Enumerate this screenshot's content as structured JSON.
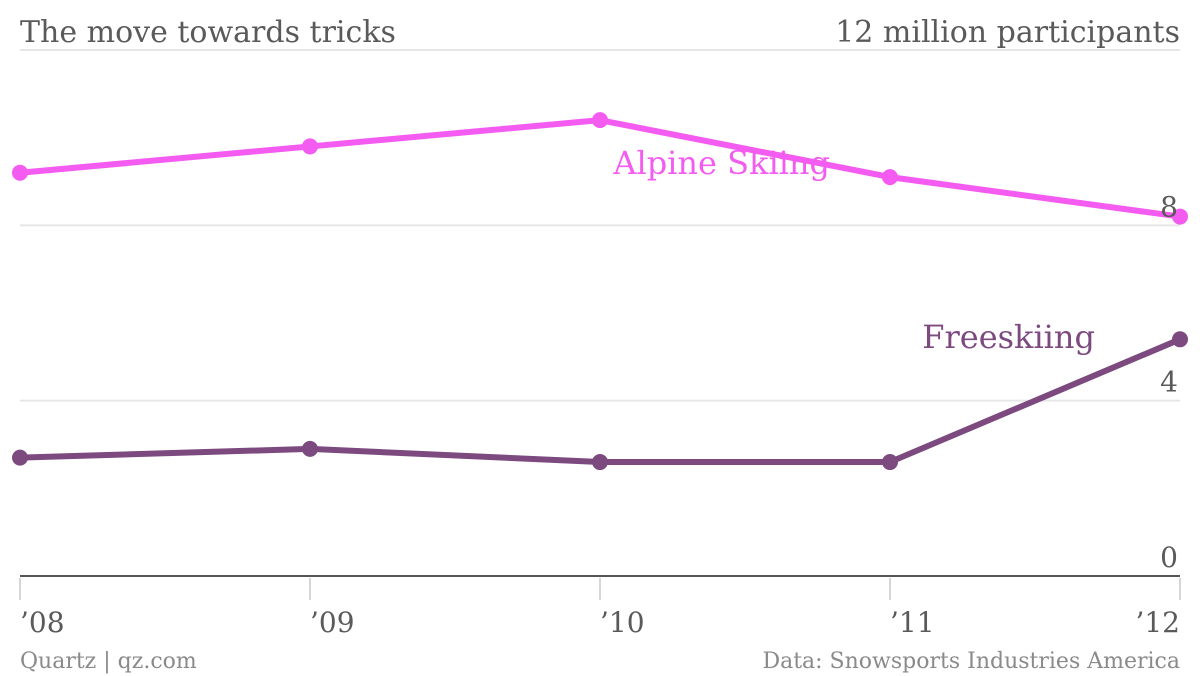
{
  "chart_data": {
    "type": "line",
    "title": "The move towards tricks",
    "unit_label": "12 million participants",
    "x": [
      "’08",
      "’09",
      "’10",
      "’11",
      "’12"
    ],
    "ylim": [
      0,
      12
    ],
    "yticks": [
      {
        "value": 12,
        "label": ""
      },
      {
        "value": 8,
        "label": "8"
      },
      {
        "value": 4,
        "label": "4"
      },
      {
        "value": 0,
        "label": "0"
      }
    ],
    "grid": true,
    "series": [
      {
        "name": "Alpine Skiing",
        "color": "#f45bf0",
        "values": [
          9.2,
          9.8,
          10.4,
          9.1,
          8.2
        ]
      },
      {
        "name": "Freeskiing",
        "color": "#7d4a80",
        "values": [
          2.7,
          2.9,
          2.6,
          2.6,
          5.4
        ]
      }
    ]
  },
  "footer": {
    "source_left": "Quartz | qz.com",
    "source_right": "Data: Snowsports Industries America"
  }
}
